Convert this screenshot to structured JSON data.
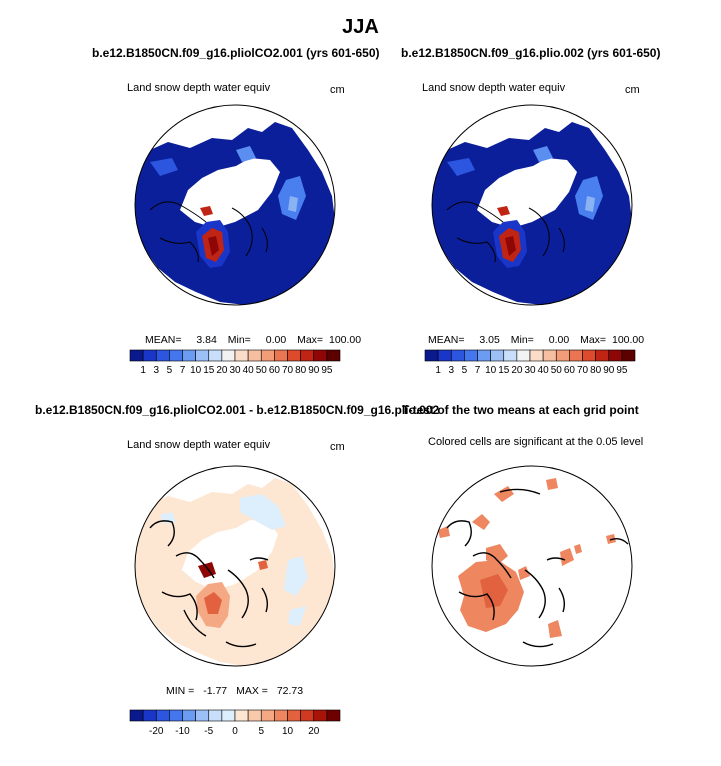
{
  "title": "JJA",
  "panels": [
    {
      "id": "p1",
      "title": "b.e12.B1850CN.f09_g16.pliolCO2.001 (yrs 601-650)",
      "subtitle": "Land snow depth water equiv",
      "units": "cm",
      "stats": {
        "mean_label": "MEAN=",
        "mean": "3.84",
        "min_label": "Min=",
        "min": "0.00",
        "max_label": "Max=",
        "max": "100.00"
      }
    },
    {
      "id": "p2",
      "title": "b.e12.B1850CN.f09_g16.plio.002 (yrs 601-650)",
      "subtitle": "Land snow depth water equiv",
      "units": "cm",
      "stats": {
        "mean_label": "MEAN=",
        "mean": "3.05",
        "min_label": "Min=",
        "min": "0.00",
        "max_label": "Max=",
        "max": "100.00"
      }
    },
    {
      "id": "p3",
      "title": "b.e12.B1850CN.f09_g16.pliolCO2.001 - b.e12.B1850CN.f09_g16.plio.002",
      "subtitle": "Land snow depth water equiv",
      "units": "cm",
      "stats": {
        "min_label": "MIN =",
        "min": "-1.77",
        "max_label": "MAX =",
        "max": "72.73"
      }
    },
    {
      "id": "p4",
      "title": "T-test of the two means at each grid point",
      "subtitle": "Colored cells are significant at the 0.05 level"
    }
  ],
  "chart_data": [
    {
      "type": "heatmap",
      "projection": "north polar stereographic",
      "title": "b.e12.B1850CN.f09_g16.pliolCO2.001 (yrs 601-650)",
      "variable": "Land snow depth water equiv",
      "units": "cm",
      "colorbar": {
        "levels": [
          "1",
          "3",
          "5",
          "7",
          "10",
          "15",
          "20",
          "30",
          "40",
          "50",
          "60",
          "70",
          "80",
          "90",
          "95"
        ],
        "colors": [
          "#0a1a8c",
          "#1a36c8",
          "#2c55e0",
          "#4477ee",
          "#6c9bf2",
          "#9cc0f6",
          "#c8defa",
          "#f2f2f2",
          "#fbdcc8",
          "#f7bfa2",
          "#f29c78",
          "#ea7552",
          "#dc4b2c",
          "#c02414",
          "#8e0606",
          "#5c0000"
        ]
      },
      "stats": {
        "mean": 3.84,
        "min": 0.0,
        "max": 100.0
      }
    },
    {
      "type": "heatmap",
      "projection": "north polar stereographic",
      "title": "b.e12.B1850CN.f09_g16.plio.002 (yrs 601-650)",
      "variable": "Land snow depth water equiv",
      "units": "cm",
      "colorbar": {
        "levels": [
          "1",
          "3",
          "5",
          "7",
          "10",
          "15",
          "20",
          "30",
          "40",
          "50",
          "60",
          "70",
          "80",
          "90",
          "95"
        ],
        "colors": [
          "#0a1a8c",
          "#1a36c8",
          "#2c55e0",
          "#4477ee",
          "#6c9bf2",
          "#9cc0f6",
          "#c8defa",
          "#f2f2f2",
          "#fbdcc8",
          "#f7bfa2",
          "#f29c78",
          "#ea7552",
          "#dc4b2c",
          "#c02414",
          "#8e0606",
          "#5c0000"
        ]
      },
      "stats": {
        "mean": 3.05,
        "min": 0.0,
        "max": 100.0
      }
    },
    {
      "type": "heatmap",
      "projection": "north polar stereographic",
      "title": "b.e12.B1850CN.f09_g16.pliolCO2.001 - b.e12.B1850CN.f09_g16.plio.002",
      "variable": "Land snow depth water equiv",
      "units": "cm",
      "colorbar": {
        "labels": [
          "-20",
          "-10",
          "-5",
          "0",
          "5",
          "10",
          "20"
        ],
        "colors": [
          "#0a1a8c",
          "#1a36c8",
          "#2c55e0",
          "#4477ee",
          "#6c9bf2",
          "#9cc0f6",
          "#c8defa",
          "#ddeefc",
          "#fde6d2",
          "#f9c9ac",
          "#f4a884",
          "#ee8660",
          "#e2613e",
          "#cf3a20",
          "#a81408",
          "#6e0000"
        ]
      },
      "stats": {
        "min": -1.77,
        "max": 72.73
      }
    },
    {
      "type": "heatmap",
      "projection": "north polar stereographic",
      "title": "T-test of the two means at each grid point",
      "note": "Colored cells are significant at the 0.05 level"
    }
  ]
}
